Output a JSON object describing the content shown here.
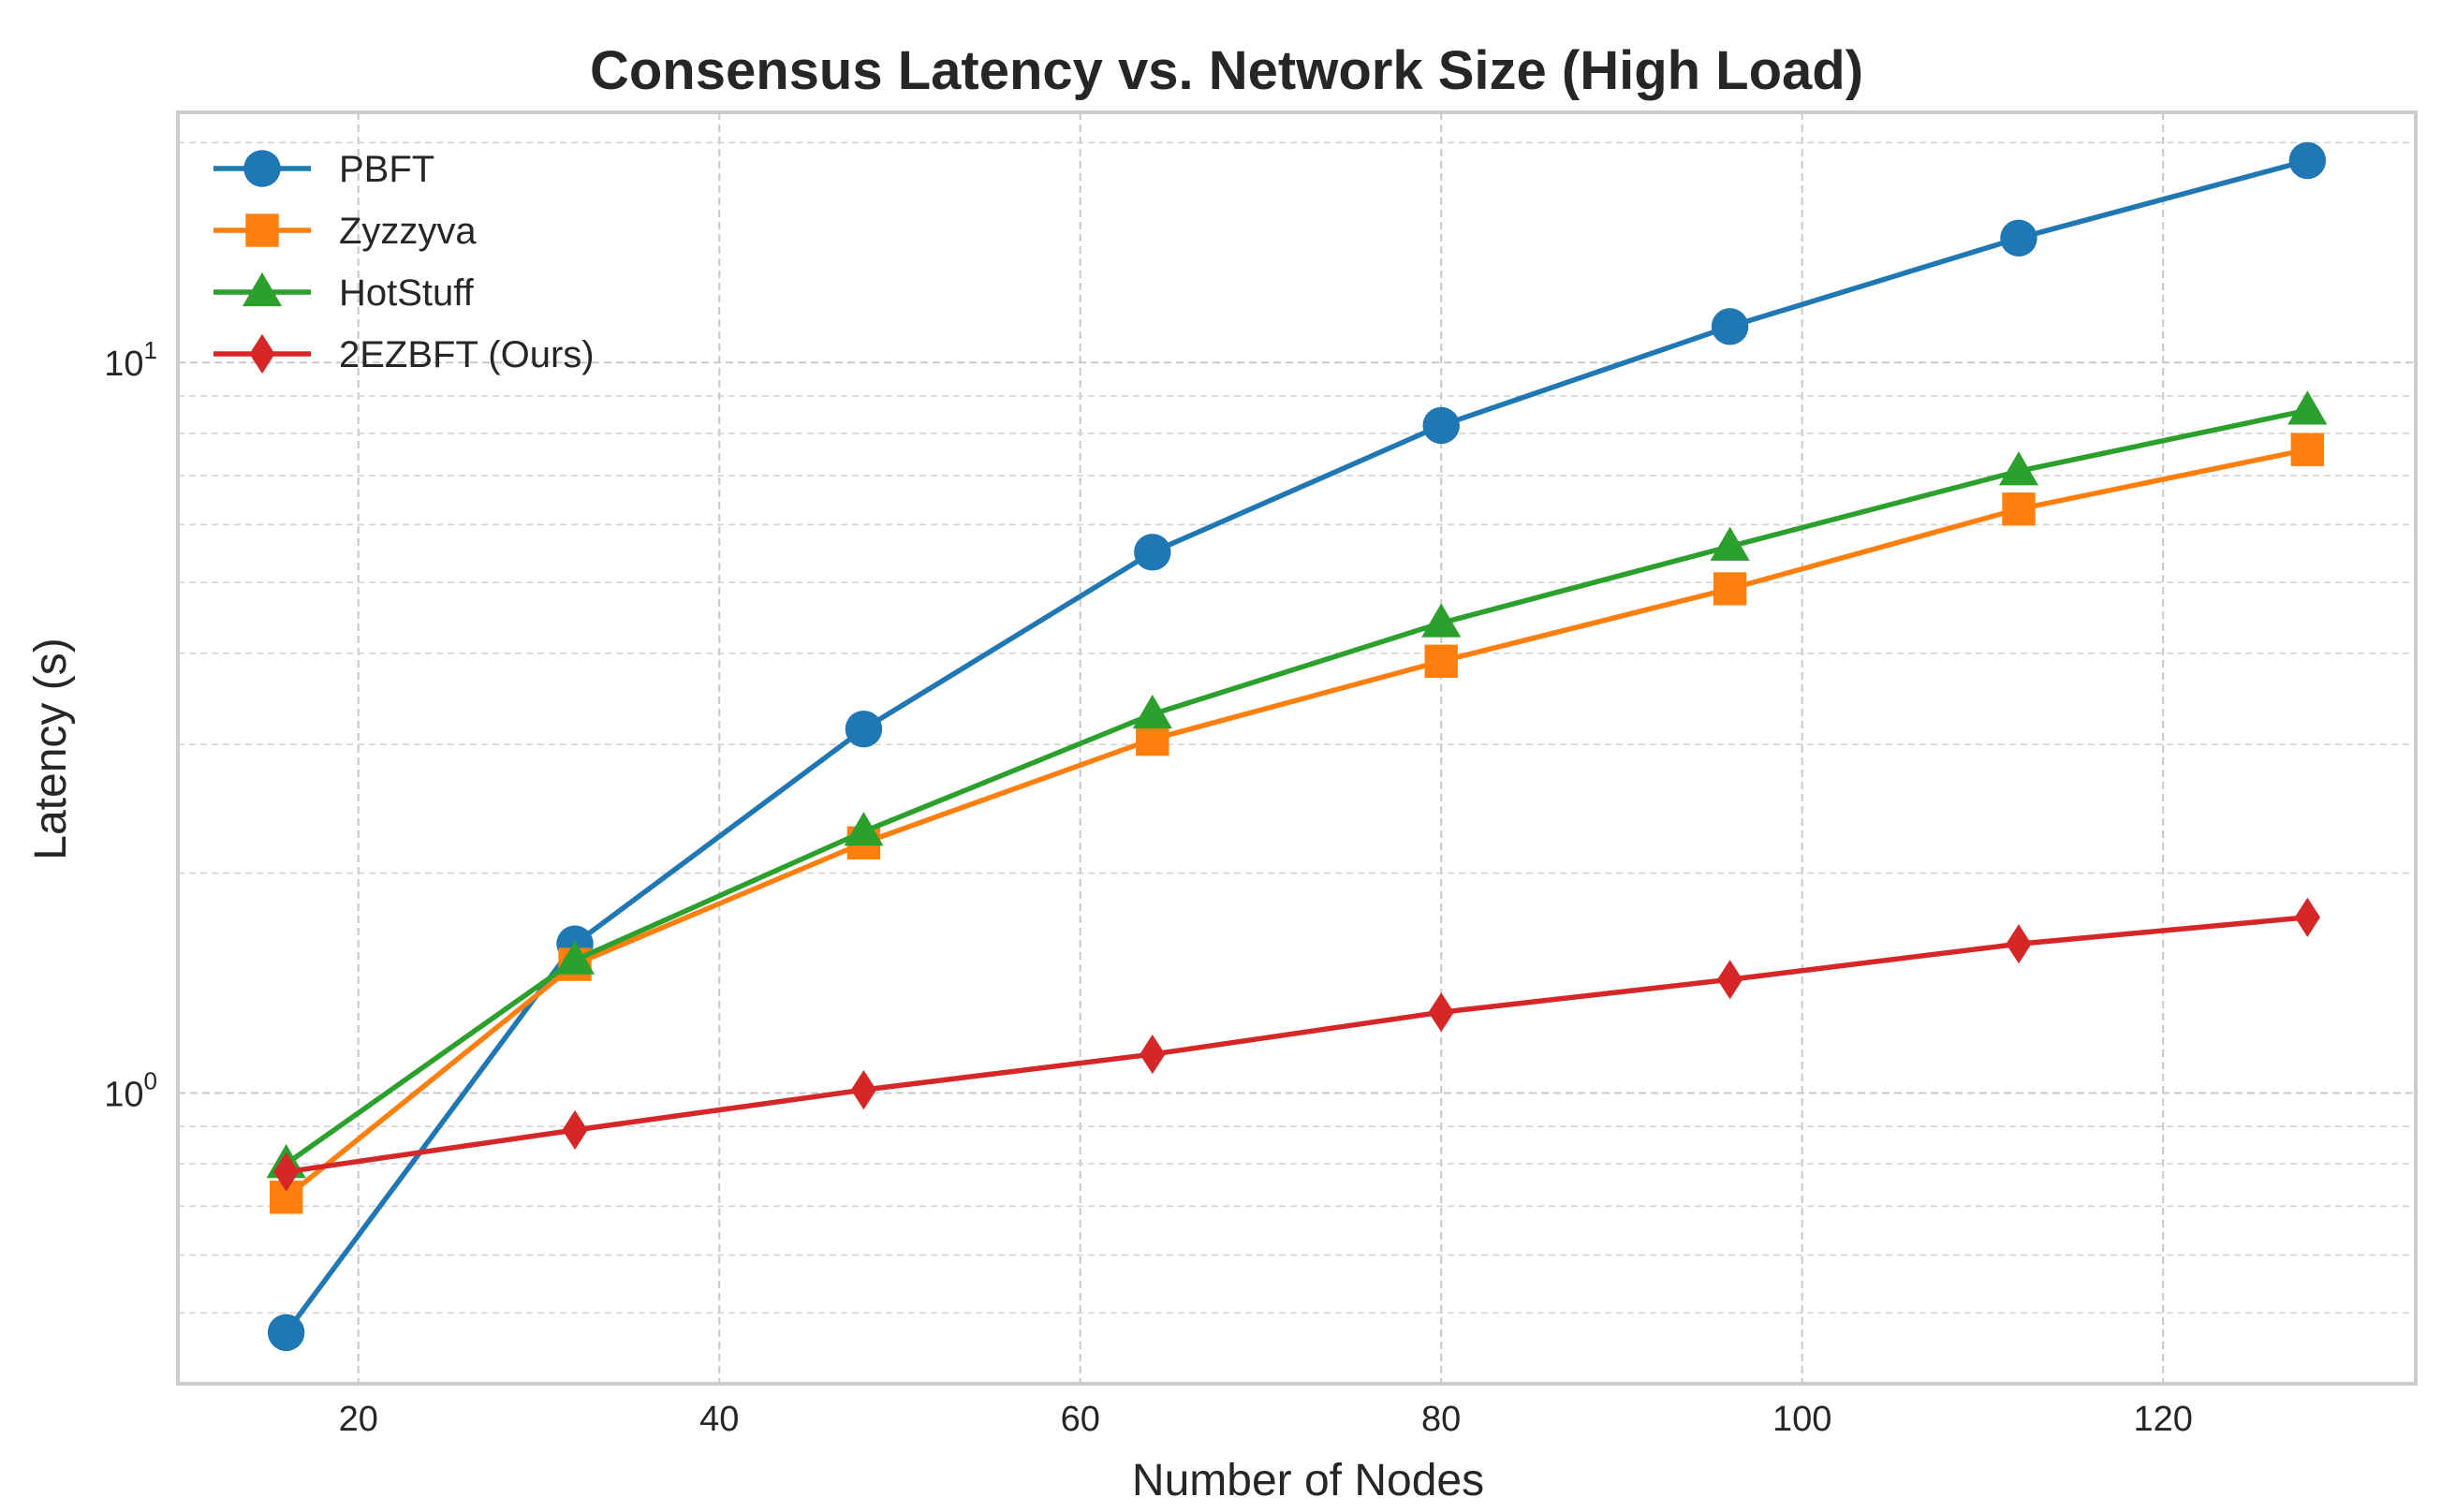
{
  "chart_data": {
    "type": "line",
    "title": "Consensus Latency vs. Network Size (High Load)",
    "xlabel": "Number of Nodes",
    "ylabel": "Latency (s)",
    "x": [
      16,
      32,
      48,
      64,
      80,
      96,
      112,
      128
    ],
    "xlim": [
      10,
      134
    ],
    "ylim": [
      0.4,
      22
    ],
    "yscale": "log",
    "x_ticks": [
      20,
      40,
      60,
      80,
      100,
      120
    ],
    "y_ticks": [
      {
        "value": 1,
        "base": "10",
        "exp": "0"
      },
      {
        "value": 10,
        "base": "10",
        "exp": "1"
      }
    ],
    "grid": true,
    "legend_position": "top-left",
    "series": [
      {
        "name": "PBFT",
        "color": "#1f77b4",
        "marker": "circle",
        "values": [
          0.47,
          1.6,
          3.15,
          5.5,
          8.2,
          11.2,
          14.8,
          18.9
        ]
      },
      {
        "name": "Zyzzyva",
        "color": "#ff7f0e",
        "marker": "square",
        "values": [
          0.72,
          1.5,
          2.2,
          3.05,
          3.9,
          4.9,
          6.3,
          7.6
        ]
      },
      {
        "name": "HotStuff",
        "color": "#2ca02c",
        "marker": "triangle",
        "values": [
          0.8,
          1.52,
          2.28,
          3.3,
          4.4,
          5.6,
          7.1,
          8.6
        ]
      },
      {
        "name": "2EZBFT (Ours)",
        "color": "#d62728",
        "marker": "diamond",
        "values": [
          0.78,
          0.89,
          1.01,
          1.13,
          1.29,
          1.43,
          1.6,
          1.74
        ]
      }
    ]
  }
}
